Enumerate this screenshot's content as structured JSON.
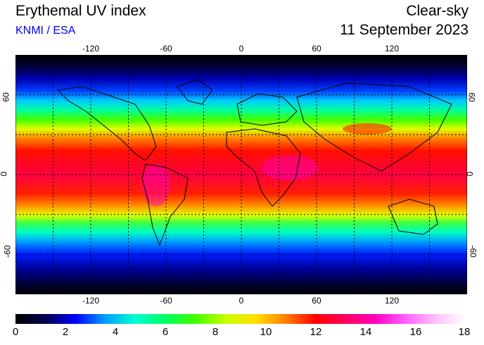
{
  "header": {
    "title": "Erythemal UV index",
    "source": "KNMI / ESA",
    "sky_condition": "Clear-sky",
    "date": "11 September 2023"
  },
  "map": {
    "projection": "equirectangular",
    "lon_ticks": [
      "-120",
      "-60",
      "0",
      "60",
      "120"
    ],
    "lat_ticks_left": [
      "60",
      "0",
      "-60"
    ],
    "lat_ticks_right": [
      "60",
      "0",
      "-60"
    ],
    "grid": "dotted every 30 degrees",
    "tropics_lines": "dashed"
  },
  "colorbar": {
    "labels": [
      "0",
      "2",
      "4",
      "6",
      "8",
      "10",
      "12",
      "14",
      "16",
      "18"
    ],
    "min": 0,
    "max": 18,
    "colors": [
      "#000000",
      "#000050",
      "#0000ff",
      "#00a0ff",
      "#00ffd0",
      "#00ff60",
      "#40ff00",
      "#c8ff00",
      "#ffe000",
      "#ff8000",
      "#ff0000",
      "#ff0060",
      "#ff00c0",
      "#ff60ff",
      "#ffc0ff",
      "#ffffff"
    ]
  }
}
